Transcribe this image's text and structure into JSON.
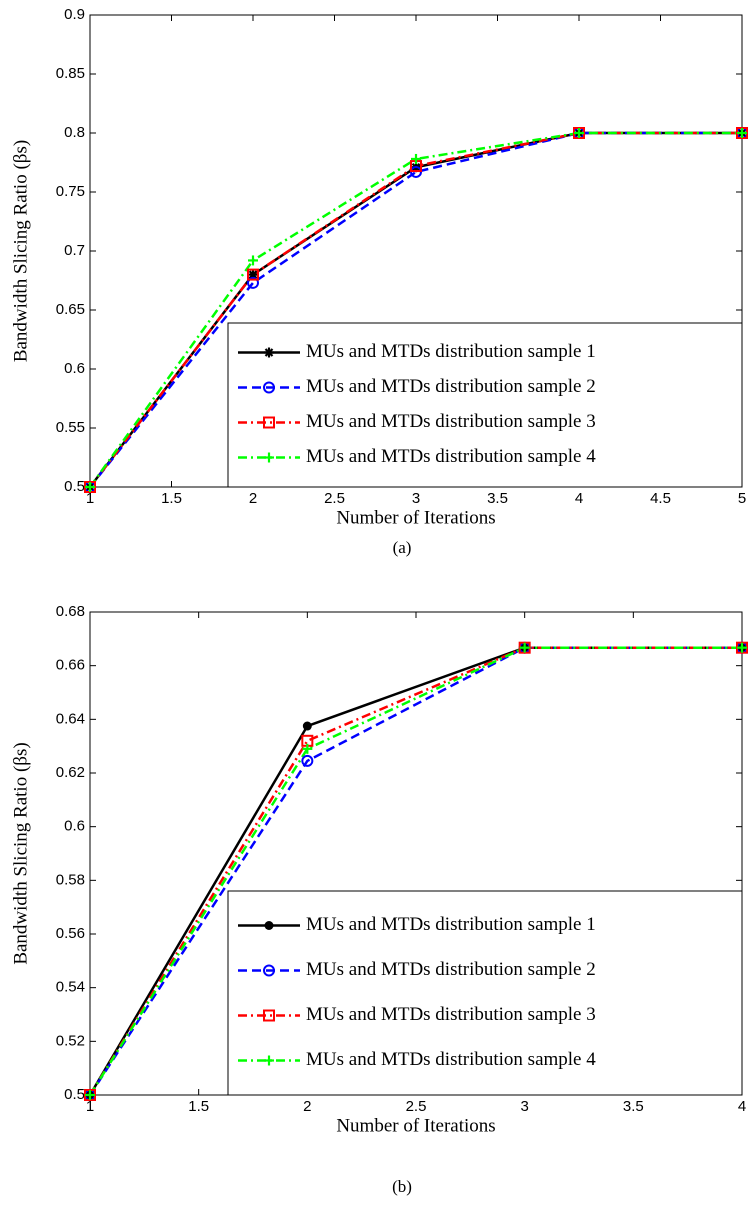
{
  "chart_data": [
    {
      "type": "line",
      "caption": "(a)",
      "x_label": "Number of Iterations",
      "y_label": "Bandwidth Slicing Ratio (βs)",
      "x": [
        1,
        2,
        3,
        4,
        5
      ],
      "xlim": [
        1,
        5
      ],
      "xticks": [
        1,
        1.5,
        2,
        2.5,
        3,
        3.5,
        4,
        4.5,
        5
      ],
      "ylim": [
        0.5,
        0.9
      ],
      "yticks": [
        0.5,
        0.55,
        0.6,
        0.65,
        0.7,
        0.75,
        0.8,
        0.85,
        0.9
      ],
      "legend_loc": "lower right",
      "series": [
        {
          "name": "MUs and MTDs distribution sample 1",
          "color": "#000000",
          "marker": "asterisk",
          "dash": "solid",
          "values": [
            0.5,
            0.68,
            0.771,
            0.8,
            0.8
          ]
        },
        {
          "name": "MUs and MTDs distribution sample 2",
          "color": "#0000ff",
          "marker": "circle",
          "dash": "dashed",
          "values": [
            0.5,
            0.673,
            0.767,
            0.8,
            0.8
          ]
        },
        {
          "name": "MUs and MTDs distribution sample 3",
          "color": "#ff0000",
          "marker": "square",
          "dash": "dashdot",
          "values": [
            0.5,
            0.68,
            0.772,
            0.8,
            0.8
          ]
        },
        {
          "name": "MUs and MTDs distribution sample 4",
          "color": "#00ff00",
          "marker": "plus",
          "dash": "dashdot",
          "values": [
            0.5,
            0.692,
            0.778,
            0.8,
            0.8
          ]
        }
      ]
    },
    {
      "type": "line",
      "caption": "(b)",
      "x_label": "Number of Iterations",
      "y_label": "Bandwidth Slicing Ratio (βs)",
      "x": [
        1,
        2,
        3,
        4
      ],
      "xlim": [
        1,
        4
      ],
      "xticks": [
        1,
        1.5,
        2,
        2.5,
        3,
        3.5,
        4
      ],
      "ylim": [
        0.5,
        0.68
      ],
      "yticks": [
        0.5,
        0.52,
        0.54,
        0.56,
        0.58,
        0.6,
        0.62,
        0.64,
        0.66,
        0.68
      ],
      "legend_loc": "lower right",
      "series": [
        {
          "name": "MUs and MTDs distribution sample 1",
          "color": "#000000",
          "marker": "dot",
          "dash": "solid",
          "values": [
            0.5,
            0.6375,
            0.6667,
            0.6667
          ]
        },
        {
          "name": "MUs and MTDs distribution sample 2",
          "color": "#0000ff",
          "marker": "circle",
          "dash": "dashed",
          "values": [
            0.5,
            0.6245,
            0.6667,
            0.6667
          ]
        },
        {
          "name": "MUs and MTDs distribution sample 3",
          "color": "#ff0000",
          "marker": "square",
          "dash": "dashdot",
          "values": [
            0.5,
            0.632,
            0.6667,
            0.6667
          ]
        },
        {
          "name": "MUs and MTDs distribution sample 4",
          "color": "#00ff00",
          "marker": "plus",
          "dash": "dashdot",
          "values": [
            0.5,
            0.629,
            0.6667,
            0.6667
          ]
        }
      ]
    }
  ]
}
